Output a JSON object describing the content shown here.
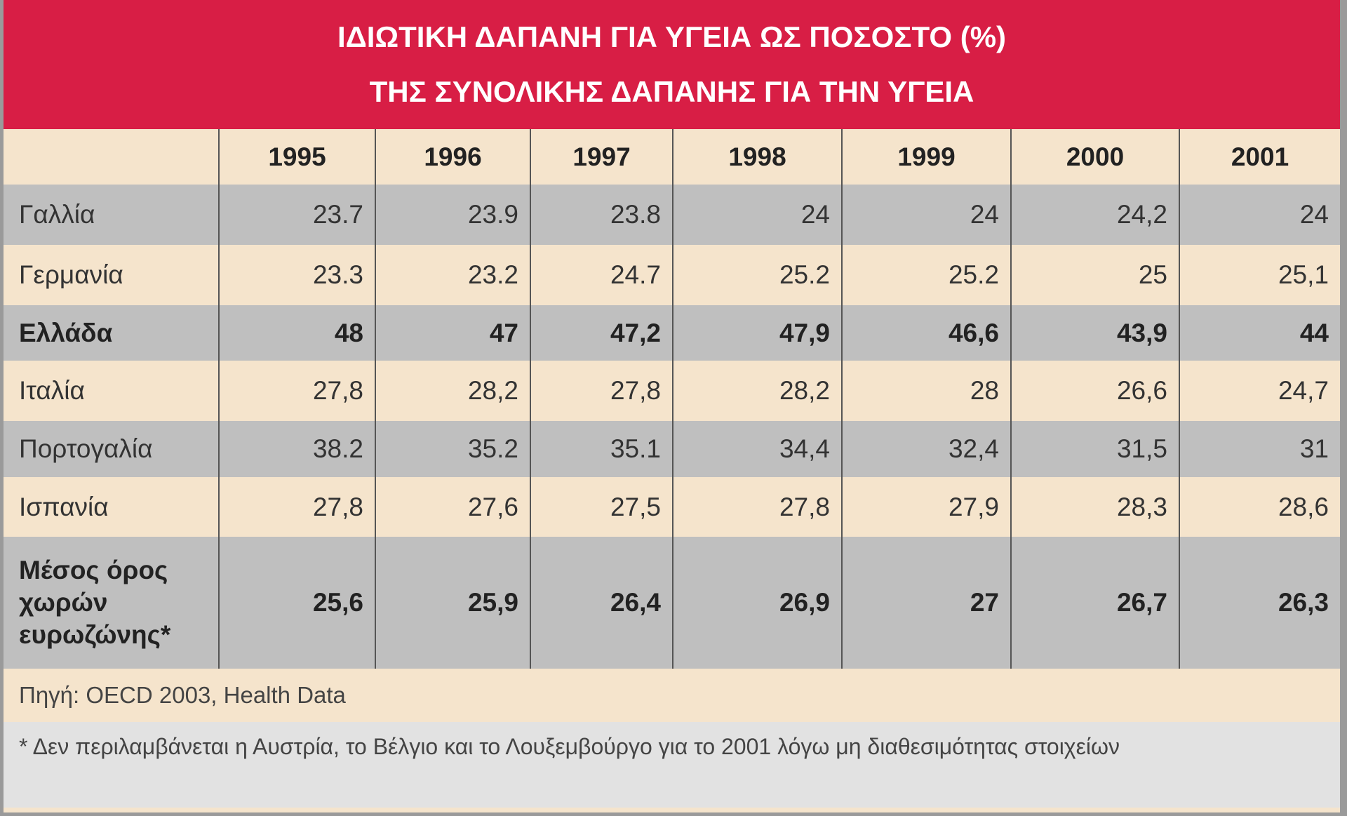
{
  "title": [
    "ΙΔΙΩΤΙΚΗ ΔΑΠΑΝΗ ΓΙΑ ΥΓΕΙΑ ΩΣ ΠΟΣΟΣΤΟ (%)",
    "ΤΗΣ ΣΥΝΟΛΙΚΗΣ ΔΑΠΑΝΗΣ ΓΙΑ ΤΗΝ ΥΓΕΙΑ"
  ],
  "table": {
    "columns": [
      "1995",
      "1996",
      "1997",
      "1998",
      "1999",
      "2000",
      "2001"
    ],
    "rows": [
      {
        "label": "Γαλλία",
        "values": [
          "23.7",
          "23.9",
          "23.8",
          "24",
          "24",
          "24,2",
          "24"
        ]
      },
      {
        "label": "Γερμανία",
        "values": [
          "23.3",
          "23.2",
          "24.7",
          "25.2",
          "25.2",
          "25",
          "25,1"
        ]
      },
      {
        "label": "Ελλάδα",
        "bold": true,
        "values": [
          "48",
          "47",
          "47,2",
          "47,9",
          "46,6",
          "43,9",
          "44"
        ]
      },
      {
        "label": "Ιταλία",
        "values": [
          "27,8",
          "28,2",
          "27,8",
          "28,2",
          "28",
          "26,6",
          "24,7"
        ]
      },
      {
        "label": "Πορτογαλία",
        "values": [
          "38.2",
          "35.2",
          "35.1",
          "34,4",
          "32,4",
          "31,5",
          "31"
        ]
      },
      {
        "label": "Ισπανία",
        "values": [
          "27,8",
          "27,6",
          "27,5",
          "27,8",
          "27,9",
          "28,3",
          "28,6"
        ]
      },
      {
        "label": "Μέσος όρος χωρών ευρωζώνης*",
        "bold": true,
        "values": [
          "25,6",
          "25,9",
          "26,4",
          "26,9",
          "27",
          "26,7",
          "26,3"
        ]
      }
    ]
  },
  "source": "Πηγή: OECD 2003, Health Data",
  "note": "* Δεν περιλαμβάνεται η Αυστρία, το Βέλγιο και το Λουξεμβούργο για το 2001 λόγω μη διαθεσιμότητας στοιχείων"
}
